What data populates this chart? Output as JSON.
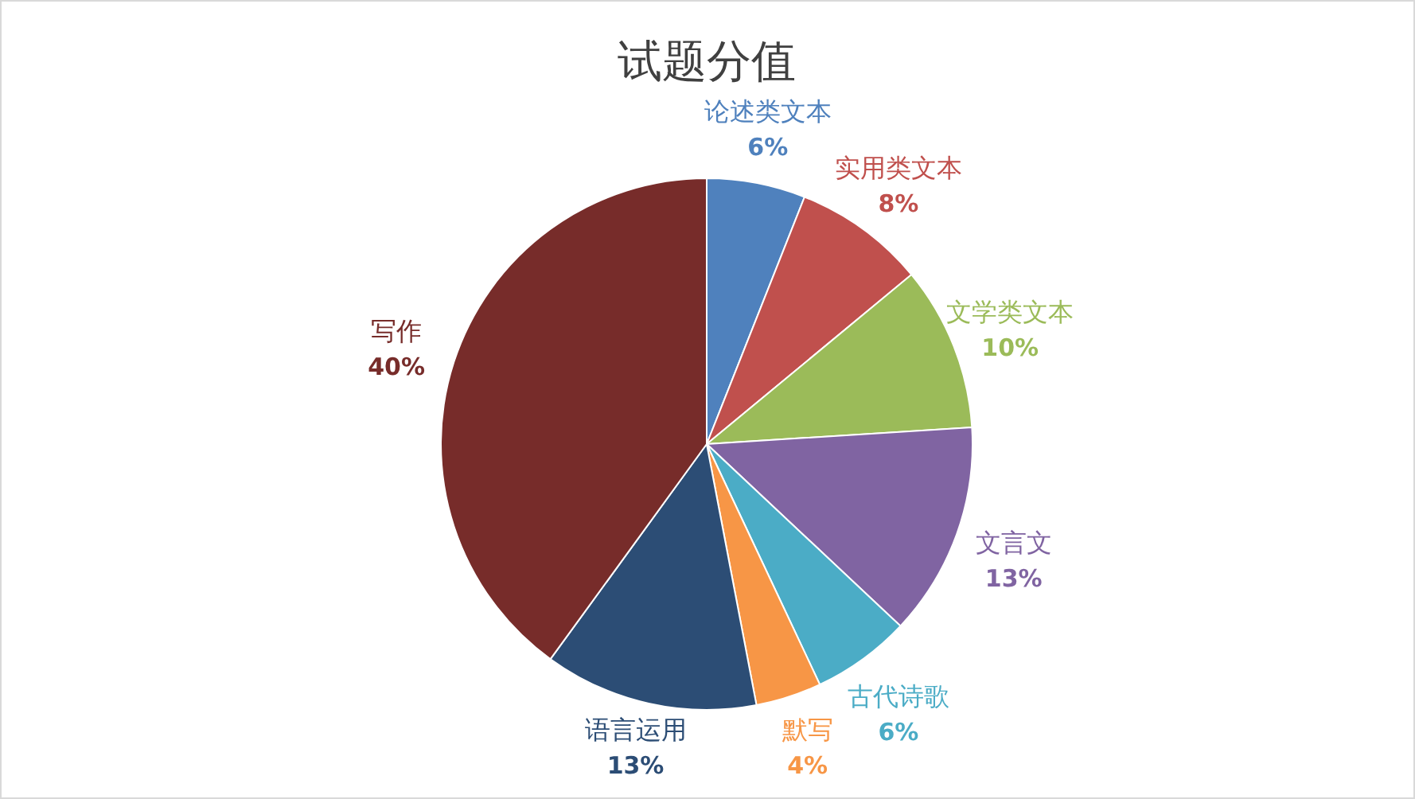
{
  "chart_data": {
    "type": "pie",
    "title": "试题分值",
    "categories": [
      "论述类文本",
      "实用类文本",
      "文学类文本",
      "文言文",
      "古代诗歌",
      "默写",
      "语言运用",
      "写作"
    ],
    "values": [
      6,
      8,
      10,
      13,
      6,
      4,
      13,
      40
    ],
    "colors": [
      "#4f81bd",
      "#c0504d",
      "#9bbb59",
      "#8064a2",
      "#4bacc6",
      "#f79646",
      "#2c4d75",
      "#772c2a"
    ],
    "value_labels": [
      "6%",
      "8%",
      "10%",
      "13%",
      "6%",
      "4%",
      "13%",
      "40%"
    ]
  }
}
